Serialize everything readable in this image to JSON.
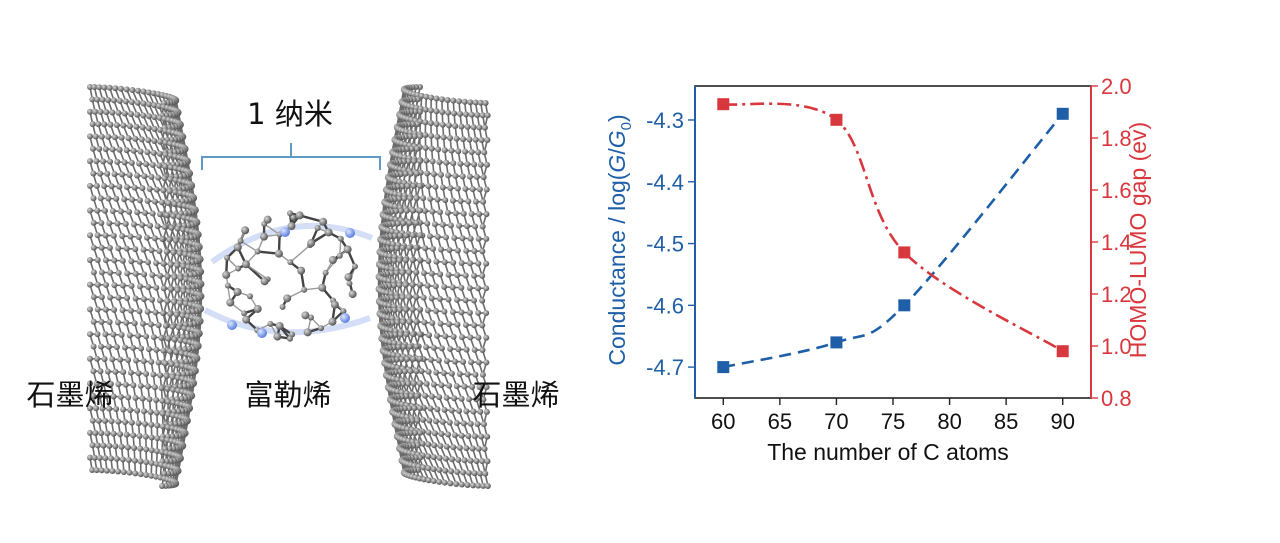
{
  "illustration": {
    "graphene_left_label": "石墨烯",
    "fullerene_label": "富勒烯",
    "graphene_right_label": "石墨烯",
    "scale_label": "1 纳米"
  },
  "chart_data": {
    "type": "line",
    "xlabel": "The number of C atoms",
    "x_ticks": [
      "60",
      "65",
      "70",
      "75",
      "80",
      "85",
      "90"
    ],
    "xlim": [
      57.5,
      92.5
    ],
    "left_axis": {
      "label": "Conductance / log(G/G₀)",
      "label_prefix": "Conductance / log(",
      "label_G": "G",
      "label_sep": "/",
      "label_G0": "G",
      "label_sub": "0",
      "label_suffix": ")",
      "ticks": [
        "-4.7",
        "-4.6",
        "-4.5",
        "-4.4",
        "-4.3"
      ],
      "ylim": [
        -4.75,
        -4.245
      ],
      "color": "#1f5fa8"
    },
    "right_axis": {
      "label": "HOMO-LUMO gap (ev)",
      "ticks": [
        "0.8",
        "1.0",
        "1.2",
        "1.4",
        "1.6",
        "1.8",
        "2.0"
      ],
      "ylim": [
        0.8,
        2.0
      ],
      "color": "#d8383d"
    },
    "series": [
      {
        "axis": "left",
        "color": "#1f5fa8",
        "line_style": "dashed",
        "x": [
          60,
          70,
          76,
          90
        ],
        "y": [
          -4.7,
          -4.66,
          -4.6,
          -4.29
        ]
      },
      {
        "axis": "right",
        "color": "#d8383d",
        "line_style": "dash-dot",
        "x": [
          60,
          70,
          76,
          90
        ],
        "y": [
          1.93,
          1.87,
          1.36,
          0.98
        ]
      }
    ]
  }
}
